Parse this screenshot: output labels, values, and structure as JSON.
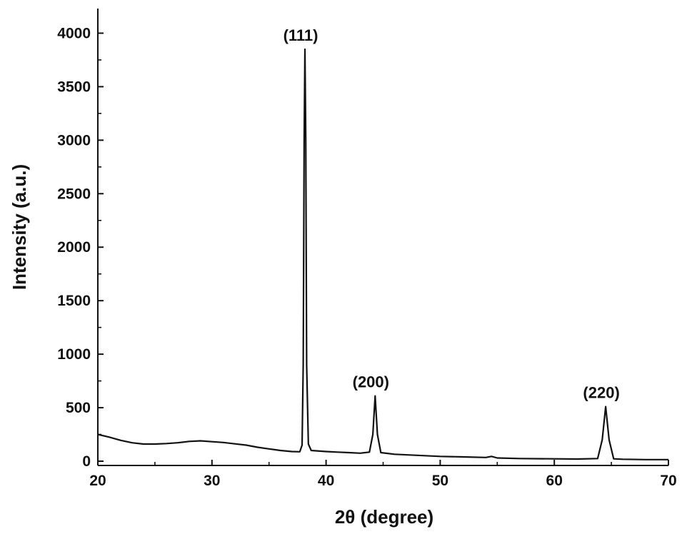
{
  "chart_data": {
    "type": "line",
    "title": "",
    "xlabel": "2θ (degree)",
    "ylabel": "Intensity (a.u.)",
    "xlim": [
      20,
      70
    ],
    "ylim": [
      -40,
      4230
    ],
    "xticks": [
      20,
      30,
      40,
      50,
      60,
      70
    ],
    "yticks": [
      0,
      500,
      1000,
      1500,
      2000,
      2500,
      3000,
      3500,
      4000
    ],
    "grid": false,
    "legend": "none",
    "line_color": "#111111",
    "series": [
      {
        "values": [
          [
            20,
            250
          ],
          [
            21,
            225
          ],
          [
            22,
            195
          ],
          [
            23,
            172
          ],
          [
            24,
            160
          ],
          [
            25,
            160
          ],
          [
            26,
            165
          ],
          [
            27,
            172
          ],
          [
            28,
            185
          ],
          [
            29,
            190
          ],
          [
            30,
            182
          ],
          [
            31,
            175
          ],
          [
            32,
            162
          ],
          [
            33,
            150
          ],
          [
            34,
            130
          ],
          [
            35,
            115
          ],
          [
            36,
            100
          ],
          [
            37,
            90
          ],
          [
            37.7,
            88
          ],
          [
            37.9,
            150
          ],
          [
            38.0,
            900
          ],
          [
            38.08,
            3000
          ],
          [
            38.15,
            3850
          ],
          [
            38.22,
            3000
          ],
          [
            38.3,
            900
          ],
          [
            38.45,
            160
          ],
          [
            38.7,
            100
          ],
          [
            40,
            90
          ],
          [
            41,
            85
          ],
          [
            42,
            80
          ],
          [
            43,
            75
          ],
          [
            43.8,
            85
          ],
          [
            44.1,
            250
          ],
          [
            44.3,
            610
          ],
          [
            44.5,
            250
          ],
          [
            44.8,
            80
          ],
          [
            46,
            65
          ],
          [
            48,
            55
          ],
          [
            50,
            45
          ],
          [
            52,
            40
          ],
          [
            54,
            35
          ],
          [
            54.5,
            45
          ],
          [
            55,
            30
          ],
          [
            57,
            25
          ],
          [
            60,
            22
          ],
          [
            62,
            20
          ],
          [
            63.8,
            25
          ],
          [
            64.2,
            200
          ],
          [
            64.5,
            510
          ],
          [
            64.8,
            200
          ],
          [
            65.2,
            22
          ],
          [
            66,
            18
          ],
          [
            68,
            15
          ],
          [
            70,
            15
          ]
        ]
      }
    ],
    "annotations": [
      {
        "text": "(111)",
        "x": 38.15,
        "y": 3850
      },
      {
        "text": "(200)",
        "x": 44.3,
        "y": 610
      },
      {
        "text": "(220)",
        "x": 64.5,
        "y": 510
      }
    ]
  }
}
